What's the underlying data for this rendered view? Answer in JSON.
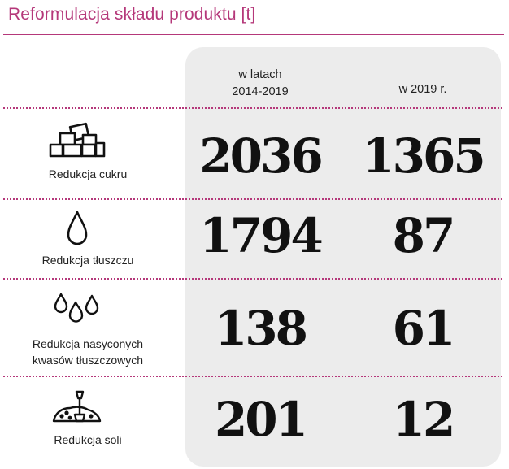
{
  "title": "Reformulacja składu produktu [t]",
  "columns": [
    "w latach\n2014-2019",
    "w 2019 r."
  ],
  "column_lines": [
    [
      "w latach",
      "2014-2019"
    ],
    [
      "w 2019 r."
    ]
  ],
  "rows": [
    {
      "label": "Redukcja cukru",
      "icon": "sugar-cubes-icon",
      "values": [
        "2036",
        "1365"
      ]
    },
    {
      "label": "Redukcja tłuszczu",
      "icon": "fat-drop-icon",
      "values": [
        "1794",
        "87"
      ]
    },
    {
      "label_lines": [
        "Redukcja nasyconych",
        "kwasów tłuszczowych"
      ],
      "icon": "saturated-fat-drops-icon",
      "values": [
        "138",
        "61"
      ]
    },
    {
      "label": "Redukcja soli",
      "icon": "salt-shovel-icon",
      "values": [
        "201",
        "12"
      ]
    }
  ],
  "colors": {
    "accent": "#b5387a",
    "panel": "#ececec",
    "text": "#111111"
  }
}
